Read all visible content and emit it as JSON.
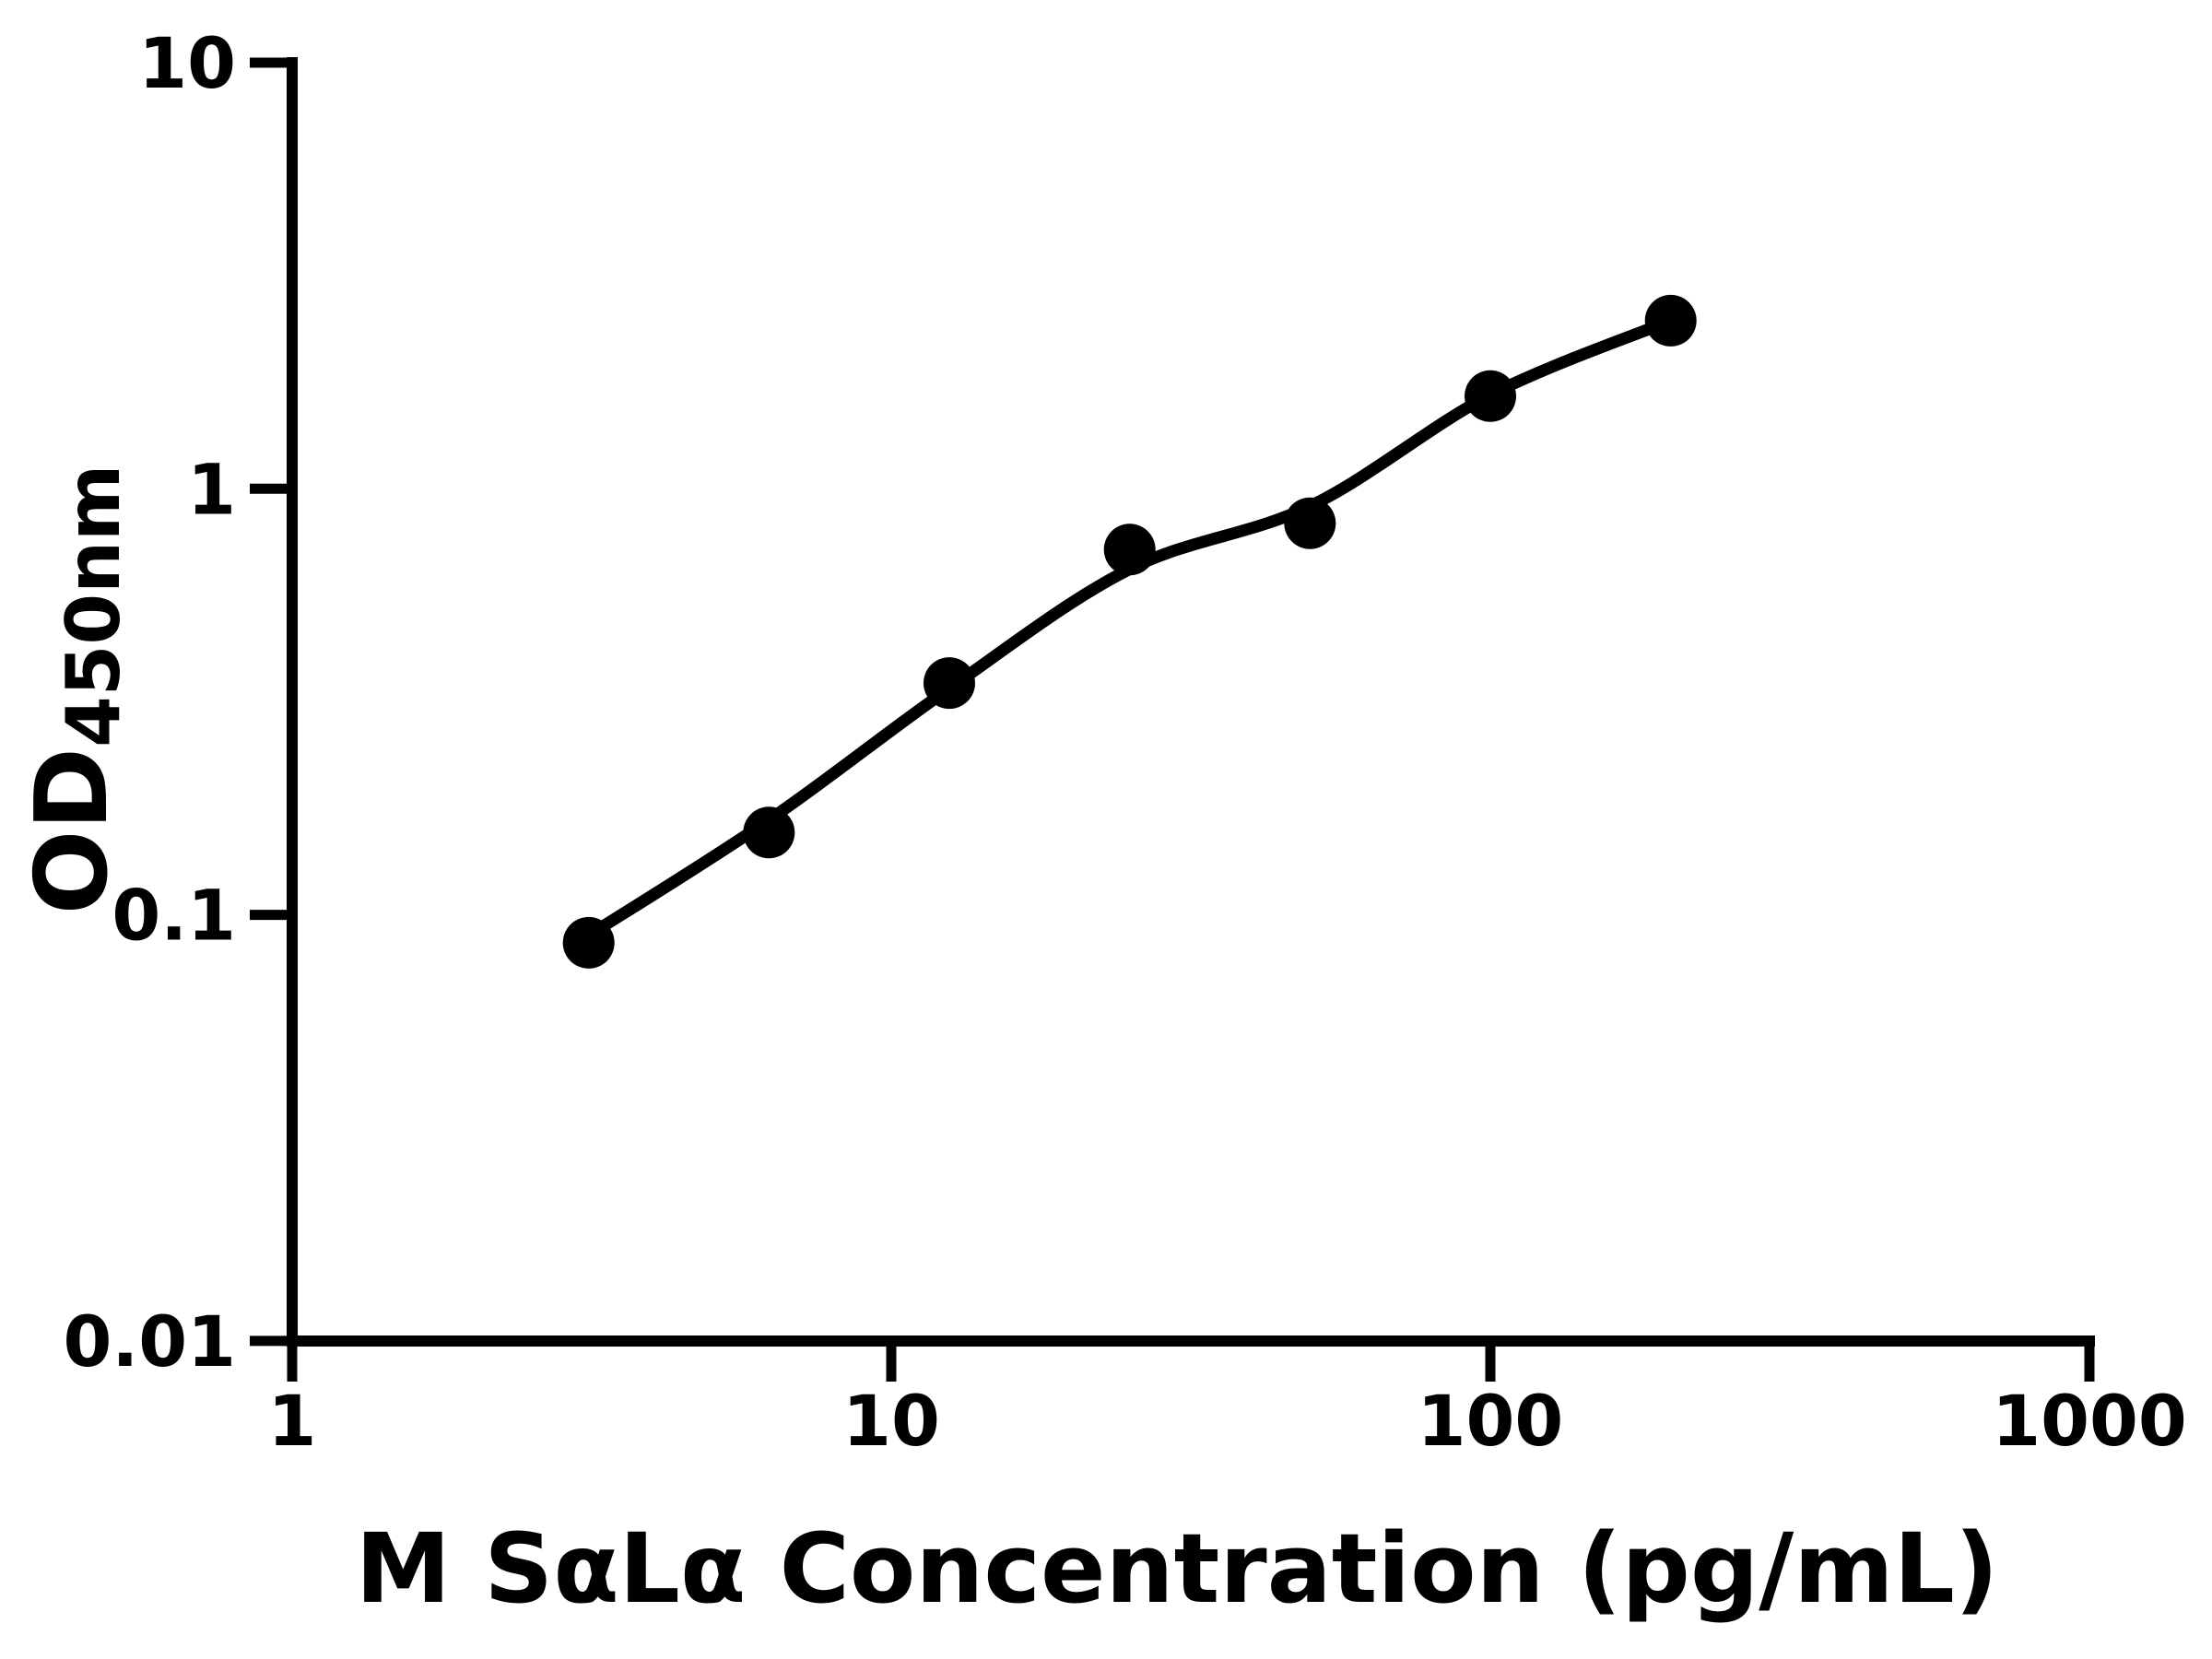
{
  "figure": {
    "background_color": "#ffffff",
    "foreground_color": "#000000"
  },
  "chart_data": {
    "type": "scatter",
    "title": "",
    "xlabel": "M SαLα Concentration (pg/mL)",
    "ylabel_main": "OD",
    "ylabel_sub": "450nm",
    "x_scale": "log",
    "y_scale": "log",
    "xlim": [
      1,
      1000
    ],
    "ylim": [
      0.01,
      10
    ],
    "grid": false,
    "legend": false,
    "x_ticks": [
      {
        "value": 1,
        "label": "1"
      },
      {
        "value": 10,
        "label": "10"
      },
      {
        "value": 100,
        "label": "100"
      },
      {
        "value": 1000,
        "label": "1000"
      }
    ],
    "y_ticks": [
      {
        "value": 10,
        "label": "10"
      },
      {
        "value": 1,
        "label": "1"
      },
      {
        "value": 0.1,
        "label": "0.1"
      },
      {
        "value": 0.01,
        "label": "0.01"
      }
    ],
    "series": [
      {
        "name": "standard-samples",
        "marker": "filled-circle",
        "marker_color": "#000000",
        "points": [
          [
            3.125,
            0.086
          ],
          [
            6.25,
            0.156
          ],
          [
            12.5,
            0.35
          ],
          [
            25,
            0.72
          ],
          [
            50,
            0.83
          ],
          [
            100,
            1.65
          ],
          [
            200,
            2.48
          ]
        ]
      }
    ],
    "fit_curve": {
      "name": "four-parameter-fit",
      "color": "#000000",
      "points": [
        [
          3.125,
          0.0895
        ],
        [
          6.25,
          0.167
        ],
        [
          12.5,
          0.34
        ],
        [
          25,
          0.648
        ],
        [
          50,
          0.91
        ],
        [
          100,
          1.66
        ],
        [
          200,
          2.48
        ]
      ]
    }
  }
}
